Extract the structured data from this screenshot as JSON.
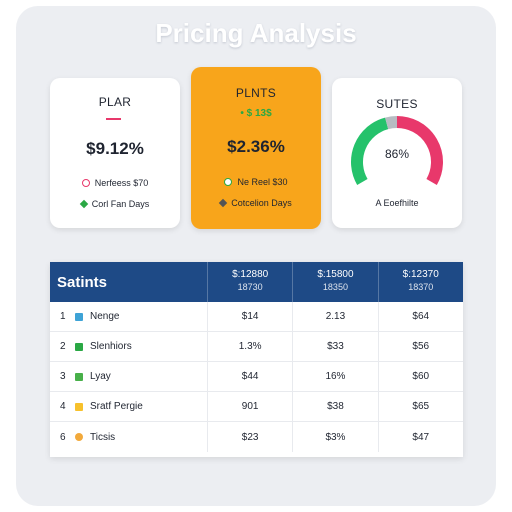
{
  "title": "Pricing Analysis",
  "cards": {
    "left": {
      "heading": "PLAR",
      "value": "$9.12%",
      "legend1": "Nerfeess $70",
      "legend2": "Corl Fan Days"
    },
    "middle": {
      "heading": "PLNTS",
      "sub": "• $ 13$",
      "value": "$2.36%",
      "legend1": "Ne Reel $30",
      "legend2": "Cotcelion Days"
    },
    "right": {
      "heading": "SUTES",
      "gauge_value": "86%",
      "caption": "A Eoefhilte",
      "gauge_colors": [
        "#25c26b",
        "#b7bcc2",
        "#e8386b"
      ]
    }
  },
  "table": {
    "title": "Satints",
    "columns": [
      {
        "top": "$:12880",
        "bottom": "18730"
      },
      {
        "top": "$:15800",
        "bottom": "18350"
      },
      {
        "top": "$:12370",
        "bottom": "18370"
      }
    ],
    "rows": [
      {
        "num": "1",
        "name": "Nenge",
        "icon_color": "#3ea3d6",
        "shape": "square",
        "cells": [
          "$14",
          "2.13",
          "$64"
        ]
      },
      {
        "num": "2",
        "name": "Slenhiors",
        "icon_color": "#2aa844",
        "shape": "square",
        "cells": [
          "1.3%",
          "$33",
          "$56"
        ]
      },
      {
        "num": "3",
        "name": "Lyay",
        "icon_color": "#48b04a",
        "shape": "square",
        "cells": [
          "$44",
          "16%",
          "$60"
        ]
      },
      {
        "num": "4",
        "name": "Sratf Pergie",
        "icon_color": "#f7c12c",
        "shape": "square",
        "cells": [
          "901",
          "$38",
          "$65"
        ]
      },
      {
        "num": "6",
        "name": "Ticsis",
        "icon_color": "#f2a93b",
        "shape": "circle",
        "cells": [
          "$23",
          "$3%",
          "$47"
        ]
      }
    ]
  }
}
